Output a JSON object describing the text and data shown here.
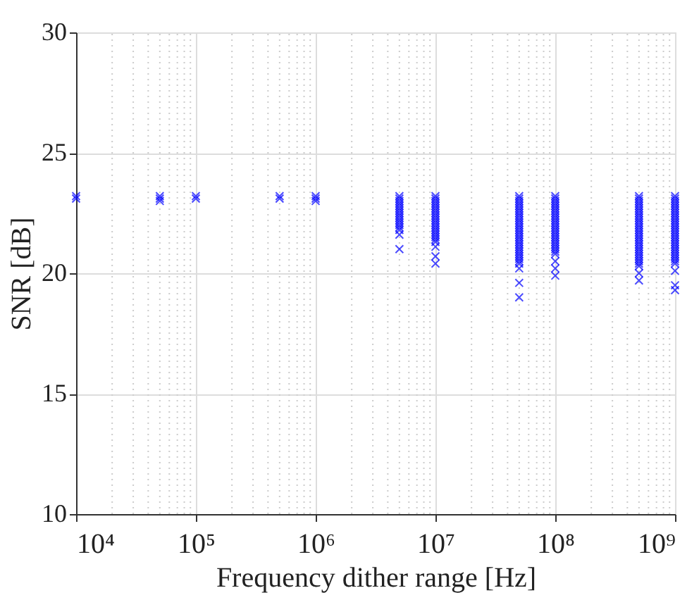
{
  "chart_data": {
    "type": "scatter",
    "xlabel": "Frequency dither range [Hz]",
    "ylabel": "SNR [dB]",
    "log": "x",
    "grid": true,
    "marker": "cross",
    "xlim": [
      10000,
      1000000000
    ],
    "xticks": [
      {
        "value": 10000,
        "label": "10⁴"
      },
      {
        "value": 100000,
        "label": "10⁵"
      },
      {
        "value": 1000000,
        "label": "10⁶"
      },
      {
        "value": 10000000,
        "label": "10⁷"
      },
      {
        "value": 100000000,
        "label": "10⁸"
      },
      {
        "value": 1000000000,
        "label": "10⁹"
      }
    ],
    "ylim": [
      10,
      30
    ],
    "yticks": [
      10,
      15,
      20,
      25,
      30
    ],
    "series": [
      {
        "color": "#0000ff",
        "x": [
          10000,
          10000,
          50000,
          50000,
          50000,
          100000,
          100000,
          500000,
          500000,
          1000000,
          1000000,
          1000000
        ],
        "values": [
          23.2,
          23.1,
          23.2,
          23.1,
          23.0,
          23.2,
          23.1,
          23.2,
          23.1,
          23.2,
          23.1,
          23.0
        ]
      },
      {
        "color": "#0000ff",
        "x": [
          5000000.0,
          5000000.0,
          5000000.0,
          5000000.0,
          5000000.0,
          5000000.0,
          5000000.0,
          5000000.0,
          5000000.0,
          5000000.0,
          5000000.0,
          5000000.0,
          5000000.0,
          5000000.0,
          5000000.0,
          5000000.0,
          5000000.0
        ],
        "values": [
          23.2,
          23.1,
          23.0,
          22.9,
          22.8,
          22.7,
          22.6,
          22.5,
          22.4,
          22.3,
          22.2,
          22.1,
          22.0,
          21.9,
          21.8,
          21.6,
          21.0
        ]
      },
      {
        "color": "#0000ff",
        "x": [
          10000000.0,
          10000000.0,
          10000000.0,
          10000000.0,
          10000000.0,
          10000000.0,
          10000000.0,
          10000000.0,
          10000000.0,
          10000000.0,
          10000000.0,
          10000000.0,
          10000000.0,
          10000000.0,
          10000000.0,
          10000000.0,
          10000000.0,
          10000000.0,
          10000000.0,
          10000000.0,
          10000000.0,
          10000000.0,
          10000000.0
        ],
        "values": [
          23.2,
          23.1,
          23.0,
          22.9,
          22.8,
          22.7,
          22.6,
          22.5,
          22.4,
          22.3,
          22.2,
          22.1,
          22.0,
          21.9,
          21.8,
          21.7,
          21.6,
          21.5,
          21.4,
          21.3,
          21.1,
          20.7,
          20.4
        ]
      },
      {
        "color": "#0000ff",
        "x": [
          50000000.0,
          50000000.0,
          50000000.0,
          50000000.0,
          50000000.0,
          50000000.0,
          50000000.0,
          50000000.0,
          50000000.0,
          50000000.0,
          50000000.0,
          50000000.0,
          50000000.0,
          50000000.0,
          50000000.0,
          50000000.0,
          50000000.0,
          50000000.0,
          50000000.0,
          50000000.0,
          50000000.0,
          50000000.0,
          50000000.0,
          50000000.0,
          50000000.0,
          50000000.0,
          50000000.0,
          50000000.0,
          50000000.0,
          50000000.0,
          50000000.0,
          50000000.0
        ],
        "values": [
          23.2,
          23.1,
          23.0,
          22.9,
          22.8,
          22.7,
          22.6,
          22.5,
          22.4,
          22.3,
          22.2,
          22.1,
          22.0,
          21.9,
          21.8,
          21.7,
          21.6,
          21.5,
          21.4,
          21.3,
          21.2,
          21.1,
          21.0,
          20.9,
          20.8,
          20.7,
          20.6,
          20.5,
          20.4,
          20.2,
          19.6,
          19.0
        ]
      },
      {
        "color": "#0000ff",
        "x": [
          100000000.0,
          100000000.0,
          100000000.0,
          100000000.0,
          100000000.0,
          100000000.0,
          100000000.0,
          100000000.0,
          100000000.0,
          100000000.0,
          100000000.0,
          100000000.0,
          100000000.0,
          100000000.0,
          100000000.0,
          100000000.0,
          100000000.0,
          100000000.0,
          100000000.0,
          100000000.0,
          100000000.0,
          100000000.0,
          100000000.0,
          100000000.0,
          100000000.0,
          100000000.0,
          100000000.0,
          100000000.0
        ],
        "values": [
          23.2,
          23.1,
          23.0,
          22.9,
          22.8,
          22.7,
          22.6,
          22.5,
          22.4,
          22.3,
          22.2,
          22.1,
          22.0,
          21.9,
          21.8,
          21.7,
          21.6,
          21.5,
          21.4,
          21.3,
          21.2,
          21.1,
          21.0,
          20.9,
          20.8,
          20.5,
          20.2,
          19.9
        ]
      },
      {
        "color": "#0000ff",
        "x": [
          500000000.0,
          500000000.0,
          500000000.0,
          500000000.0,
          500000000.0,
          500000000.0,
          500000000.0,
          500000000.0,
          500000000.0,
          500000000.0,
          500000000.0,
          500000000.0,
          500000000.0,
          500000000.0,
          500000000.0,
          500000000.0,
          500000000.0,
          500000000.0,
          500000000.0,
          500000000.0,
          500000000.0,
          500000000.0,
          500000000.0,
          500000000.0,
          500000000.0,
          500000000.0,
          500000000.0,
          500000000.0,
          500000000.0,
          500000000.0,
          500000000.0,
          500000000.0
        ],
        "values": [
          23.2,
          23.1,
          23.0,
          22.9,
          22.8,
          22.7,
          22.6,
          22.5,
          22.4,
          22.3,
          22.2,
          22.1,
          22.0,
          21.9,
          21.8,
          21.7,
          21.6,
          21.5,
          21.4,
          21.3,
          21.2,
          21.1,
          21.0,
          20.9,
          20.8,
          20.7,
          20.6,
          20.5,
          20.4,
          20.3,
          20.0,
          19.7
        ]
      },
      {
        "color": "#0000ff",
        "x": [
          1000000000.0,
          1000000000.0,
          1000000000.0,
          1000000000.0,
          1000000000.0,
          1000000000.0,
          1000000000.0,
          1000000000.0,
          1000000000.0,
          1000000000.0,
          1000000000.0,
          1000000000.0,
          1000000000.0,
          1000000000.0,
          1000000000.0,
          1000000000.0,
          1000000000.0,
          1000000000.0,
          1000000000.0,
          1000000000.0,
          1000000000.0,
          1000000000.0,
          1000000000.0,
          1000000000.0,
          1000000000.0,
          1000000000.0,
          1000000000.0,
          1000000000.0,
          1000000000.0,
          1000000000.0,
          1000000000.0,
          1000000000.0
        ],
        "values": [
          23.2,
          23.1,
          23.0,
          22.9,
          22.8,
          22.7,
          22.6,
          22.5,
          22.4,
          22.3,
          22.2,
          22.1,
          22.0,
          21.9,
          21.8,
          21.7,
          21.6,
          21.5,
          21.4,
          21.3,
          21.2,
          21.1,
          21.0,
          20.9,
          20.8,
          20.7,
          20.6,
          20.5,
          20.4,
          20.1,
          19.5,
          19.3
        ]
      }
    ]
  }
}
